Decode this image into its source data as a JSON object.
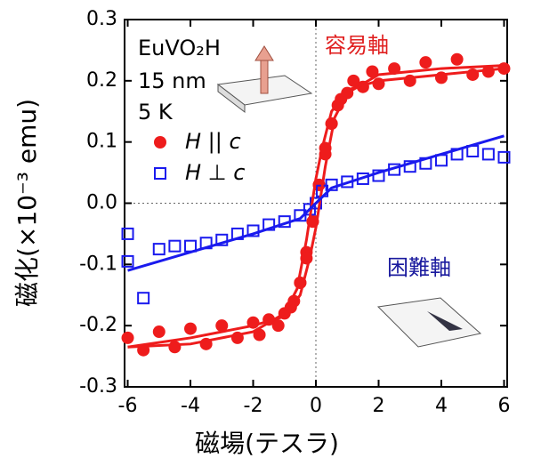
{
  "chart_data": {
    "type": "scatter",
    "xlabel": "磁場(テスラ)",
    "ylabel": "磁化(×10⁻³ emu)",
    "annotations": [
      "EuVO₂H",
      "15 nm",
      "5 K",
      "容易軸",
      "困難軸"
    ],
    "xlim": [
      -6.1,
      6.1
    ],
    "ylim": [
      -0.3,
      0.3
    ],
    "xticks": [
      -6,
      -4,
      -2,
      0,
      2,
      4,
      6
    ],
    "yticks": [
      -0.3,
      -0.2,
      -0.1,
      {
        "value": 0,
        "label": "0.0"
      },
      0.1,
      0.2,
      0.3
    ],
    "series": [
      {
        "name": "H || c",
        "color": "#ee1c1c",
        "marker": "circle",
        "x": [
          6,
          5.5,
          5,
          4,
          3,
          2,
          1.5,
          1,
          0.7,
          0.5,
          0.3,
          0.1,
          -0.1,
          -0.3,
          -0.5,
          -0.8,
          -1.2,
          -1.8,
          -2.5,
          -3.5,
          -4.5,
          -5.5,
          -6,
          -5,
          -4,
          -3,
          -2,
          -1.5,
          -1,
          -0.7,
          -0.5,
          -0.3,
          -0.1,
          0.1,
          0.3,
          0.5,
          0.8,
          1.2,
          1.8,
          2.5,
          3.5,
          4.5
        ],
        "values": [
          0.22,
          0.215,
          0.21,
          0.205,
          0.2,
          0.195,
          0.19,
          0.18,
          0.16,
          0.13,
          0.09,
          0.03,
          -0.03,
          -0.08,
          -0.13,
          -0.17,
          -0.2,
          -0.215,
          -0.22,
          -0.23,
          -0.235,
          -0.24,
          -0.22,
          -0.21,
          -0.205,
          -0.2,
          -0.195,
          -0.19,
          -0.18,
          -0.16,
          -0.13,
          -0.09,
          -0.03,
          0.03,
          0.08,
          0.13,
          0.17,
          0.2,
          0.215,
          0.22,
          0.23,
          0.235
        ]
      },
      {
        "name": "H ⊥ c",
        "color": "#1a1aee",
        "marker": "square",
        "x": [
          -6,
          -6,
          -5.5,
          -5,
          -4.5,
          -4,
          -3.5,
          -3,
          -2.5,
          -2,
          -1.5,
          -1,
          -0.5,
          -0.2,
          0,
          0.2,
          0.5,
          1,
          1.5,
          2,
          2.5,
          3,
          3.5,
          4,
          4.5,
          5,
          5.5,
          6
        ],
        "values": [
          -0.05,
          -0.095,
          -0.155,
          -0.075,
          -0.07,
          -0.07,
          -0.065,
          -0.06,
          -0.05,
          -0.045,
          -0.035,
          -0.03,
          -0.02,
          -0.01,
          0.0,
          0.02,
          0.03,
          0.035,
          0.04,
          0.045,
          0.055,
          0.06,
          0.065,
          0.07,
          0.08,
          0.085,
          0.08,
          0.075
        ]
      },
      {
        "color": "#ee1c1c",
        "line": true,
        "x": [
          6,
          4,
          2,
          1,
          0.5,
          0.2,
          0,
          -0.3,
          -0.6,
          -1,
          -2,
          -4,
          -6
        ],
        "values": [
          0.22,
          0.21,
          0.2,
          0.185,
          0.15,
          0.09,
          0.04,
          -0.06,
          -0.14,
          -0.18,
          -0.21,
          -0.23,
          -0.235
        ]
      },
      {
        "color": "#ee1c1c",
        "line": true,
        "x": [
          -6,
          -4,
          -2,
          -1,
          -0.5,
          -0.2,
          0,
          0.3,
          0.6,
          1,
          2,
          4,
          6
        ],
        "values": [
          -0.235,
          -0.22,
          -0.2,
          -0.185,
          -0.15,
          -0.09,
          -0.04,
          0.06,
          0.14,
          0.18,
          0.21,
          0.22,
          0.225
        ]
      },
      {
        "color": "#1a1aee",
        "line": true,
        "x": [
          -6,
          -2,
          -0.5,
          0,
          0.5,
          2,
          6
        ],
        "values": [
          -0.11,
          -0.05,
          -0.025,
          0,
          0.025,
          0.05,
          0.11
        ]
      }
    ]
  }
}
